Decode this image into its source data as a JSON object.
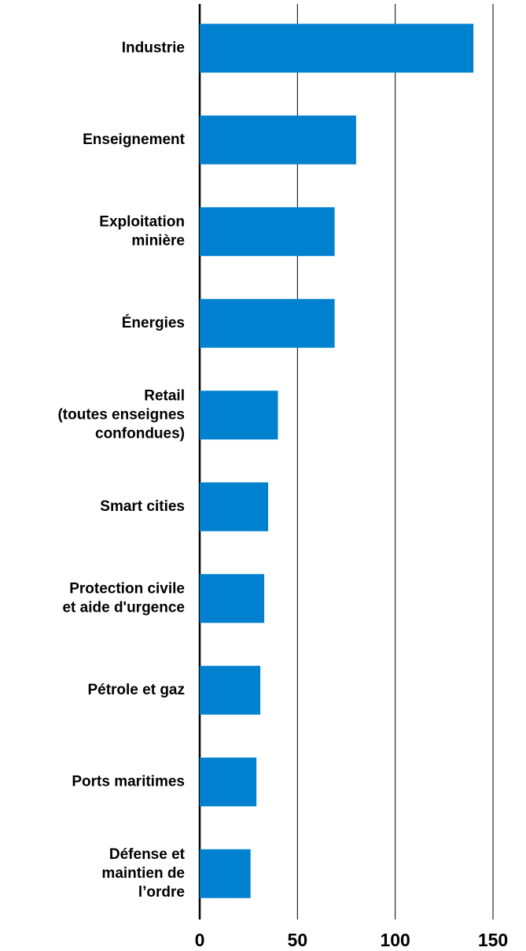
{
  "chart_data": {
    "type": "bar",
    "orientation": "horizontal",
    "categories": [
      "Industrie",
      "Enseignement",
      "Exploitation\nminière",
      "Énergies",
      "Retail\n(toutes enseignes\nconfondues)",
      "Smart cities",
      "Protection civile\net aide d'urgence",
      "Pétrole et gaz",
      "Ports maritimes",
      "Défense et\nmaintien de\nl’ordre"
    ],
    "values": [
      140,
      80,
      69,
      69,
      40,
      35,
      33,
      31,
      29,
      26
    ],
    "color": "#0081d0",
    "xlim": [
      0,
      150
    ],
    "xticks": [
      0,
      50,
      100,
      150
    ],
    "grid": true
  }
}
